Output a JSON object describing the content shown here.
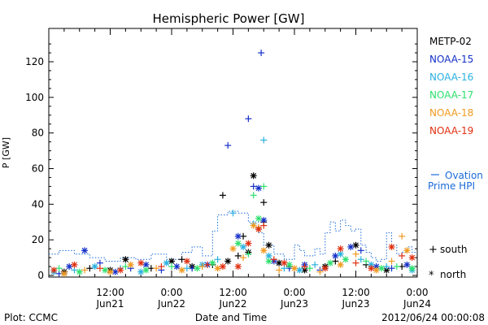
{
  "chart_data": {
    "type": "scatter",
    "title": "Hemispheric Power [GW]",
    "xlabel": "Date and Time",
    "ylabel": "P [GW]",
    "xlim": [
      0,
      72
    ],
    "ylim": [
      0,
      140
    ],
    "yticks": [
      0,
      20,
      40,
      60,
      80,
      100,
      120
    ],
    "xticks": [
      {
        "x": 12,
        "time": "12:00",
        "day": "Jun21"
      },
      {
        "x": 24,
        "time": "0:00",
        "day": "Jun22"
      },
      {
        "x": 36,
        "time": "12:00",
        "day": "Jun22"
      },
      {
        "x": 48,
        "time": "0:00",
        "day": "Jun23"
      },
      {
        "x": 60,
        "time": "12:00",
        "day": "Jun23"
      },
      {
        "x": 72,
        "time": "0:00",
        "day": "Jun24"
      }
    ],
    "grid": false,
    "legend_position": "right",
    "series": [
      {
        "name": "METP-02",
        "color": "#000000",
        "points": [
          [
            3,
            2,
            "n"
          ],
          [
            8,
            4,
            "s"
          ],
          [
            12,
            3,
            "n"
          ],
          [
            15,
            9,
            "n"
          ],
          [
            20,
            4,
            "s"
          ],
          [
            24,
            8,
            "n"
          ],
          [
            26,
            9,
            "s"
          ],
          [
            28,
            5,
            "n"
          ],
          [
            32,
            6,
            "s"
          ],
          [
            34,
            45,
            "s"
          ],
          [
            35,
            8,
            "n"
          ],
          [
            37,
            11,
            "s"
          ],
          [
            38,
            22,
            "s"
          ],
          [
            39,
            13,
            "n"
          ],
          [
            40,
            56,
            "n"
          ],
          [
            41,
            26,
            "s"
          ],
          [
            42,
            41,
            "s"
          ],
          [
            42,
            30,
            "s"
          ],
          [
            43,
            17,
            "n"
          ],
          [
            45,
            7,
            "n"
          ],
          [
            47,
            5,
            "s"
          ],
          [
            50,
            3,
            "n"
          ],
          [
            54,
            5,
            "n"
          ],
          [
            56,
            8,
            "s"
          ],
          [
            60,
            17,
            "n"
          ],
          [
            62,
            6,
            "s"
          ],
          [
            66,
            3,
            "n"
          ],
          [
            69,
            5,
            "s"
          ]
        ]
      },
      {
        "name": "NOAA-15",
        "color": "#1530c8",
        "points": [
          [
            2,
            1,
            "s"
          ],
          [
            4,
            5,
            "n"
          ],
          [
            7,
            14,
            "n"
          ],
          [
            10,
            7,
            "s"
          ],
          [
            13,
            2,
            "n"
          ],
          [
            16,
            4,
            "s"
          ],
          [
            19,
            6,
            "n"
          ],
          [
            22,
            3,
            "s"
          ],
          [
            25,
            5,
            "n"
          ],
          [
            28,
            4,
            "s"
          ],
          [
            31,
            6,
            "n"
          ],
          [
            35,
            73,
            "s"
          ],
          [
            37,
            22,
            "n"
          ],
          [
            39,
            88,
            "s"
          ],
          [
            40,
            50,
            "s"
          ],
          [
            41,
            49,
            "n"
          ],
          [
            41.5,
            125,
            "s"
          ],
          [
            42,
            31,
            "n"
          ],
          [
            44,
            8,
            "n"
          ],
          [
            47,
            4,
            "s"
          ],
          [
            50,
            6,
            "n"
          ],
          [
            53,
            3,
            "s"
          ],
          [
            56,
            11,
            "n"
          ],
          [
            59,
            16,
            "n"
          ],
          [
            61,
            14,
            "s"
          ],
          [
            64,
            5,
            "n"
          ],
          [
            67,
            4,
            "s"
          ],
          [
            70,
            6,
            "n"
          ]
        ]
      },
      {
        "name": "NOAA-16",
        "color": "#2ab0e0",
        "points": [
          [
            1,
            2,
            "n"
          ],
          [
            5,
            3,
            "s"
          ],
          [
            9,
            5,
            "n"
          ],
          [
            14,
            4,
            "s"
          ],
          [
            18,
            2,
            "n"
          ],
          [
            23,
            7,
            "n"
          ],
          [
            27,
            4,
            "s"
          ],
          [
            30,
            6,
            "n"
          ],
          [
            33,
            9,
            "s"
          ],
          [
            36,
            35,
            "s"
          ],
          [
            38,
            16,
            "n"
          ],
          [
            40,
            29,
            "s"
          ],
          [
            42,
            76,
            "s"
          ],
          [
            43,
            11,
            "n"
          ],
          [
            46,
            4,
            "s"
          ],
          [
            49,
            3,
            "n"
          ],
          [
            52,
            6,
            "s"
          ],
          [
            57,
            12,
            "n"
          ],
          [
            61,
            9,
            "s"
          ],
          [
            63,
            6,
            "n"
          ],
          [
            66,
            5,
            "s"
          ],
          [
            71,
            3,
            "n"
          ]
        ]
      },
      {
        "name": "NOAA-17",
        "color": "#2ee06e",
        "points": [
          [
            2,
            4,
            "s"
          ],
          [
            6,
            2,
            "n"
          ],
          [
            11,
            3,
            "n"
          ],
          [
            15,
            5,
            "s"
          ],
          [
            19,
            3,
            "n"
          ],
          [
            24,
            5,
            "s"
          ],
          [
            29,
            4,
            "n"
          ],
          [
            32,
            7,
            "n"
          ],
          [
            37,
            18,
            "n"
          ],
          [
            39,
            12,
            "s"
          ],
          [
            40,
            45,
            "s"
          ],
          [
            41,
            32,
            "n"
          ],
          [
            42,
            50,
            "s"
          ],
          [
            43,
            8,
            "n"
          ],
          [
            47,
            6,
            "n"
          ],
          [
            51,
            4,
            "s"
          ],
          [
            55,
            7,
            "n"
          ],
          [
            58,
            9,
            "n"
          ],
          [
            62,
            8,
            "s"
          ],
          [
            65,
            4,
            "n"
          ],
          [
            68,
            5,
            "s"
          ],
          [
            71,
            4,
            "n"
          ]
        ]
      },
      {
        "name": "NOAA-18",
        "color": "#f09a20",
        "points": [
          [
            3,
            1,
            "n"
          ],
          [
            7,
            3,
            "s"
          ],
          [
            12,
            2,
            "n"
          ],
          [
            16,
            6,
            "n"
          ],
          [
            21,
            4,
            "s"
          ],
          [
            26,
            3,
            "n"
          ],
          [
            30,
            5,
            "s"
          ],
          [
            33,
            4,
            "n"
          ],
          [
            36,
            15,
            "n"
          ],
          [
            38,
            10,
            "s"
          ],
          [
            40,
            28,
            "n"
          ],
          [
            41,
            27,
            "s"
          ],
          [
            42,
            14,
            "n"
          ],
          [
            45,
            3,
            "s"
          ],
          [
            48,
            4,
            "n"
          ],
          [
            53,
            2,
            "s"
          ],
          [
            57,
            6,
            "n"
          ],
          [
            60,
            12,
            "s"
          ],
          [
            64,
            3,
            "n"
          ],
          [
            67,
            8,
            "s"
          ],
          [
            69,
            22,
            "s"
          ],
          [
            70,
            14,
            "n"
          ]
        ]
      },
      {
        "name": "NOAA-19",
        "color": "#e03010",
        "points": [
          [
            1,
            3,
            "n"
          ],
          [
            5,
            6,
            "n"
          ],
          [
            10,
            4,
            "s"
          ],
          [
            14,
            3,
            "n"
          ],
          [
            18,
            7,
            "n"
          ],
          [
            22,
            5,
            "s"
          ],
          [
            27,
            8,
            "n"
          ],
          [
            31,
            6,
            "s"
          ],
          [
            34,
            5,
            "n"
          ],
          [
            37,
            5,
            "n"
          ],
          [
            39,
            18,
            "n"
          ],
          [
            41,
            26,
            "n"
          ],
          [
            42,
            28,
            "s"
          ],
          [
            44,
            9,
            "s"
          ],
          [
            46,
            7,
            "n"
          ],
          [
            50,
            5,
            "s"
          ],
          [
            54,
            4,
            "n"
          ],
          [
            57,
            15,
            "n"
          ],
          [
            60,
            7,
            "s"
          ],
          [
            63,
            4,
            "n"
          ],
          [
            67,
            16,
            "n"
          ],
          [
            69,
            11,
            "s"
          ],
          [
            71,
            10,
            "n"
          ]
        ]
      }
    ],
    "ovation": {
      "name": "Ovation Prime HPI",
      "color": "#1a6ad8",
      "steps": [
        [
          0,
          12
        ],
        [
          2,
          14
        ],
        [
          5,
          12
        ],
        [
          8,
          10
        ],
        [
          11,
          8
        ],
        [
          14,
          10
        ],
        [
          17,
          9
        ],
        [
          20,
          12
        ],
        [
          23,
          9
        ],
        [
          26,
          13
        ],
        [
          28,
          16
        ],
        [
          30,
          11
        ],
        [
          32,
          25
        ],
        [
          33,
          34
        ],
        [
          35,
          36
        ],
        [
          37,
          35
        ],
        [
          39,
          30
        ],
        [
          41,
          24
        ],
        [
          42,
          17
        ],
        [
          44,
          12
        ],
        [
          46,
          9
        ],
        [
          48,
          17
        ],
        [
          49,
          14
        ],
        [
          50,
          11
        ],
        [
          52,
          15
        ],
        [
          53,
          12
        ],
        [
          54,
          24
        ],
        [
          55,
          30
        ],
        [
          56,
          25
        ],
        [
          57,
          31
        ],
        [
          58,
          28
        ],
        [
          59,
          25
        ],
        [
          60,
          26
        ],
        [
          61,
          17
        ],
        [
          62,
          13
        ],
        [
          63,
          10
        ],
        [
          64,
          8
        ],
        [
          65,
          9
        ],
        [
          66,
          24
        ],
        [
          67,
          17
        ],
        [
          68,
          12
        ],
        [
          69,
          13
        ],
        [
          70,
          16
        ],
        [
          71,
          13
        ],
        [
          72,
          13
        ]
      ]
    }
  },
  "legend": {
    "series": [
      "METP-02",
      "NOAA-15",
      "NOAA-16",
      "NOAA-17",
      "NOAA-18",
      "NOAA-19"
    ],
    "ovation_label_1": "Ovation",
    "ovation_label_2": "Prime HPI",
    "south_label": "south",
    "north_label": "north"
  },
  "footer": {
    "plot_label": "Plot: CCMC",
    "center_label": "Date and Time",
    "timestamp": "2012/06/24 00:00:08"
  }
}
